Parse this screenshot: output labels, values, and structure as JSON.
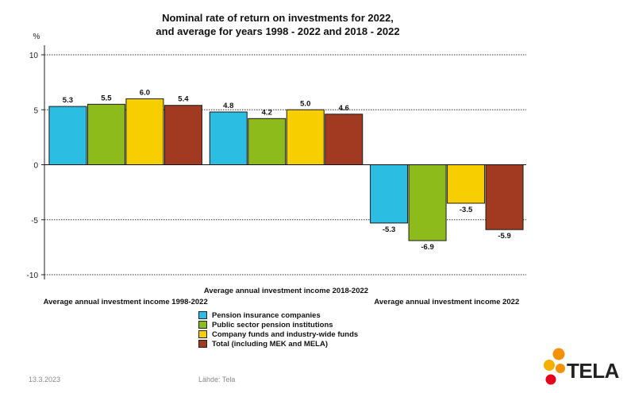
{
  "header": {
    "title_line1": "Nominal rate of return on investments for 2022,",
    "title_line2": "and average for years 1998 - 2022 and 2018 - 2022"
  },
  "footer": {
    "date": "13.3.2023",
    "source": "Lähde: Tela"
  },
  "logo": {
    "text": "TELA",
    "icon": "tela-dots-logo"
  },
  "colors": {
    "pension_insurance": "#2bbde2",
    "public_sector": "#8dbb1b",
    "company_funds": "#f7cf00",
    "total": "#a13a21"
  },
  "chart_data": {
    "type": "bar",
    "unit_label": "%",
    "ylim": [
      -10,
      10
    ],
    "yticks": [
      10,
      5,
      0,
      -5,
      -10
    ],
    "grid": true,
    "categories": [
      "Average annual investment income 1998-2022",
      "Average annual investment income 2018-2022",
      "Average annual investment income 2022"
    ],
    "series": [
      {
        "name": "Pension insurance companies",
        "color": "#2bbde2",
        "values": [
          5.3,
          4.8,
          -5.3
        ],
        "labels": [
          "5.3",
          "4.8",
          "-5.3"
        ]
      },
      {
        "name": "Public sector pension institutions",
        "color": "#8dbb1b",
        "values": [
          5.5,
          4.2,
          -6.9
        ],
        "labels": [
          "5.5",
          "4.2",
          "-6.9"
        ]
      },
      {
        "name": "Company funds and industry-wide funds",
        "color": "#f7cf00",
        "values": [
          6.0,
          5.0,
          -3.5
        ],
        "labels": [
          "6.0",
          "5.0",
          "-3.5"
        ]
      },
      {
        "name": "Total (including MEK and MELA)",
        "color": "#a13a21",
        "values": [
          5.4,
          4.6,
          -5.9
        ],
        "labels": [
          "5.4",
          "4.6",
          "-5.9"
        ]
      }
    ],
    "legend": "bottom"
  }
}
